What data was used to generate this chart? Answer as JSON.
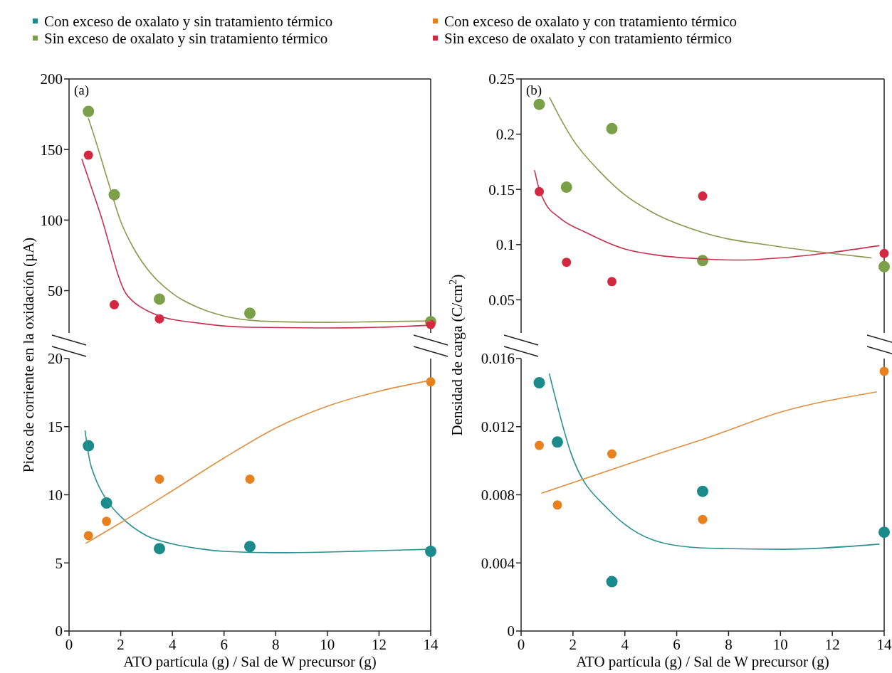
{
  "chart_data": [
    {
      "type": "scatter",
      "xlim": [
        0,
        14
      ],
      "xticks": [
        0,
        2,
        4,
        6,
        8,
        10,
        12,
        14
      ],
      "ylim": [
        20,
        200
      ],
      "yticks": [
        50,
        100,
        150,
        200
      ],
      "tick_labels": "y",
      "legend": "top",
      "marker": "circle",
      "annotations": [
        "(a)"
      ],
      "series": [
        {
          "name": "Sin exceso de oxalato y sin tratamiento térmico",
          "color": "#7aa048",
          "x": [
            0.75,
            1.75,
            3.5,
            7,
            14
          ],
          "values": [
            177,
            118,
            44,
            34,
            28
          ]
        },
        {
          "name": "Sin exceso de oxalato y con tratamiento térmico",
          "color": "#d42840",
          "x": [
            0.75,
            1.75,
            3.5,
            14
          ],
          "values": [
            146,
            40,
            30,
            26
          ]
        },
        {
          "type": "line",
          "marker": "none",
          "line_style": "solid",
          "color": "#8a9a50",
          "x": [
            0.75,
            1,
            1.5,
            2,
            2.5,
            3,
            4,
            5,
            6,
            7,
            8,
            10,
            12,
            14
          ],
          "values": [
            172,
            158,
            128,
            99,
            80,
            66,
            48,
            38,
            32,
            29,
            28,
            27.5,
            28,
            28.5
          ]
        },
        {
          "type": "line",
          "marker": "none",
          "line_style": "solid",
          "color": "#c83050",
          "x": [
            0.5,
            1.2,
            2.2,
            2.5,
            3,
            3.5,
            5,
            7,
            10,
            12,
            14
          ],
          "values": [
            143,
            105,
            48,
            42,
            36,
            32,
            27,
            24,
            23.5,
            24,
            25.5
          ]
        }
      ]
    },
    {
      "type": "scatter",
      "xlim": [
        0,
        14
      ],
      "xticks": [
        0,
        2,
        4,
        6,
        8,
        10,
        12,
        14
      ],
      "ylim": [
        0,
        20
      ],
      "yticks": [
        0,
        5,
        10,
        15,
        20
      ],
      "legend": "top",
      "marker": "circle",
      "xlabel": "ATO partícula (g) / Sal de W precursor (g)",
      "ylabel": "Picos de corriente en la oxidación (µA)",
      "series": [
        {
          "name": "Con exceso de oxalato y sin tratamiento térmico",
          "color": "#1a8a8a",
          "x": [
            0.75,
            1.45,
            3.5,
            7,
            14
          ],
          "values": [
            13.6,
            9.4,
            6.05,
            6.2,
            5.85
          ]
        },
        {
          "name": "Con exceso de oxalato y con tratamiento térmico",
          "color": "#e8801e",
          "x": [
            0.75,
            1.45,
            3.5,
            7,
            14
          ],
          "values": [
            7,
            8.05,
            11.15,
            11.15,
            18.3
          ]
        },
        {
          "type": "line",
          "marker": "none",
          "line_style": "solid",
          "color": "#2a9090",
          "x": [
            0.62,
            0.8,
            1,
            1.5,
            2,
            3,
            4,
            5,
            6,
            8,
            10,
            12,
            14
          ],
          "values": [
            14.7,
            12.5,
            11.3,
            9.5,
            8.4,
            7,
            6.4,
            6.05,
            5.85,
            5.75,
            5.8,
            5.9,
            6
          ]
        },
        {
          "type": "line",
          "marker": "none",
          "line_style": "solid",
          "color": "#e09040",
          "x": [
            0.66,
            2,
            4,
            6,
            8,
            10,
            12,
            14
          ],
          "values": [
            6.45,
            7.95,
            10.3,
            12.7,
            14.9,
            16.5,
            17.6,
            18.4
          ]
        }
      ]
    },
    {
      "type": "scatter",
      "xlim": [
        0,
        14
      ],
      "xticks": [
        0,
        2,
        4,
        6,
        8,
        10,
        12,
        14
      ],
      "ylim": [
        0.02,
        0.25
      ],
      "yticks": [
        0.05,
        0.1,
        0.15,
        0.2,
        0.25
      ],
      "tick_labels": "y",
      "marker": "circle",
      "annotations": [
        "(b)"
      ],
      "series": [
        {
          "color": "#7aa048",
          "x": [
            0.7,
            1.75,
            3.5,
            7,
            14
          ],
          "values": [
            0.227,
            0.152,
            0.205,
            0.0855,
            0.08
          ]
        },
        {
          "color": "#d42840",
          "x": [
            0.7,
            1.75,
            3.5,
            7,
            14
          ],
          "values": [
            0.148,
            0.084,
            0.0665,
            0.144,
            0.092
          ]
        },
        {
          "type": "line",
          "marker": "none",
          "line_style": "solid",
          "color": "#8a9a50",
          "x": [
            1.1,
            1.5,
            2,
            3,
            4,
            5,
            7,
            10,
            12,
            13.5
          ],
          "values": [
            0.233,
            0.215,
            0.195,
            0.167,
            0.145,
            0.13,
            0.111,
            0.098,
            0.092,
            0.088
          ]
        },
        {
          "type": "line",
          "marker": "none",
          "line_style": "solid",
          "color": "#c83050",
          "x": [
            0.52,
            0.7,
            0.9,
            1.5,
            2.5,
            4,
            5.4,
            7,
            8.5,
            10,
            12,
            13.8
          ],
          "values": [
            0.167,
            0.15,
            0.139,
            0.124,
            0.111,
            0.096,
            0.09,
            0.087,
            0.086,
            0.088,
            0.093,
            0.099
          ]
        }
      ]
    },
    {
      "type": "scatter",
      "xlim": [
        0,
        14
      ],
      "xticks": [
        0,
        2,
        4,
        6,
        8,
        10,
        12,
        14
      ],
      "ylim": [
        0,
        0.016
      ],
      "yticks": [
        0,
        0.004,
        0.008,
        0.012,
        0.016
      ],
      "marker": "circle",
      "xlabel": "ATO partícula (g) / Sal de W precursor (g)",
      "ylabel": "Densidad de carga (C/cm$^{2}$)",
      "series": [
        {
          "color": "#1a8a8a",
          "x": [
            0.7,
            1.4,
            3.5,
            7,
            14
          ],
          "values": [
            0.01458,
            0.0111,
            0.0029,
            0.0082,
            0.0058
          ]
        },
        {
          "color": "#e8801e",
          "x": [
            0.7,
            1.4,
            3.5,
            7,
            14
          ],
          "values": [
            0.0109,
            0.0074,
            0.0104,
            0.00655,
            0.01525
          ]
        },
        {
          "type": "line",
          "marker": "none",
          "line_style": "solid",
          "color": "#2a9090",
          "x": [
            1.09,
            1.92,
            3.39,
            4.24,
            5.4,
            7,
            10.1,
            13.8
          ],
          "values": [
            0.0151,
            0.01046,
            0.0071,
            0.006,
            0.0052,
            0.00488,
            0.0048,
            0.0051
          ]
        },
        {
          "type": "line",
          "marker": "none",
          "line_style": "solid",
          "color": "#e09040",
          "x": [
            0.8,
            5.4,
            7,
            10.1,
            13.7
          ],
          "values": [
            0.0081,
            0.01046,
            0.01125,
            0.0129,
            0.01404
          ]
        }
      ]
    }
  ]
}
